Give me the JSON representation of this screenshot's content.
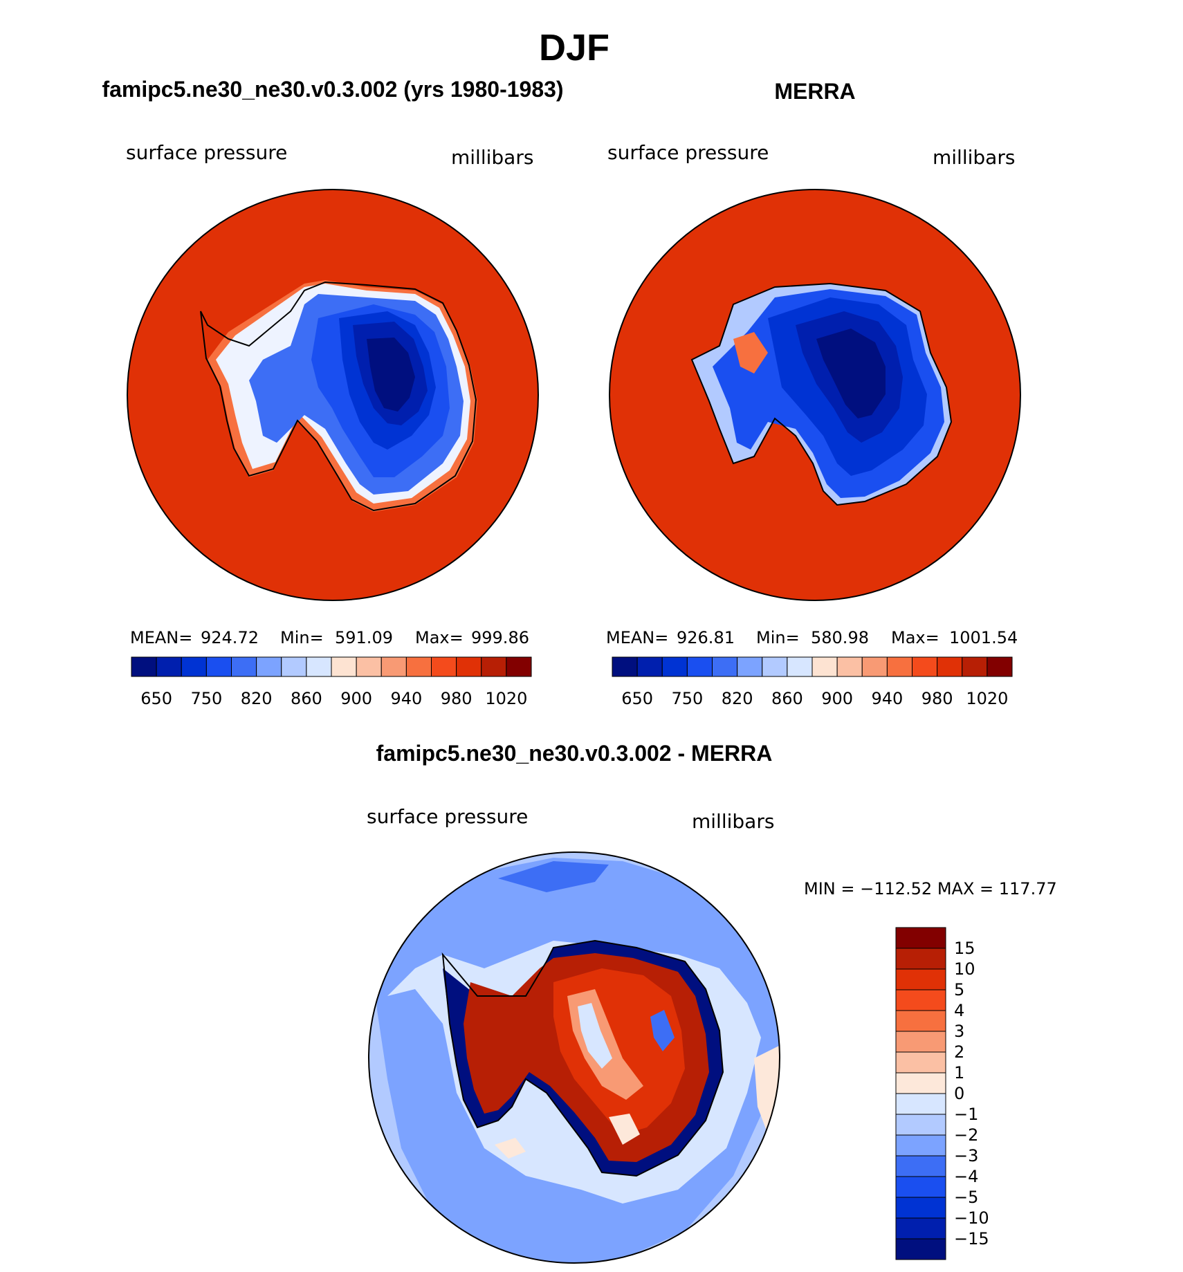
{
  "figure": {
    "title": "DJF",
    "panels": [
      {
        "id": "model",
        "title": "famipc5.ne30_ne30.v0.3.002 (yrs 1980-1983)",
        "left_label": "surface pressure",
        "right_label": "millibars",
        "stats": {
          "mean_label": "MEAN=",
          "mean": "924.72",
          "min_label": "Min=",
          "min": "591.09",
          "max_label": "Max=",
          "max": "999.86"
        }
      },
      {
        "id": "obs",
        "title": "MERRA",
        "left_label": "surface pressure",
        "right_label": "millibars",
        "stats": {
          "mean_label": "MEAN=",
          "mean": "926.81",
          "min_label": "Min=",
          "min": "580.98",
          "max_label": "Max=",
          "max": "1001.54"
        }
      },
      {
        "id": "diff",
        "title": "famipc5.ne30_ne30.v0.3.002 - MERRA",
        "left_label": "surface pressure",
        "right_label": "millibars",
        "minmax": "MIN = −112.52  MAX = 117.77"
      }
    ]
  },
  "colorbar_abs": {
    "colors": [
      "#000f7f",
      "#001fae",
      "#0033d3",
      "#1a4ff0",
      "#3d6ef5",
      "#7ca3ff",
      "#b2caff",
      "#d7e6ff",
      "#fde3d2",
      "#fbc0a4",
      "#f89a74",
      "#f7703f",
      "#f44b1c",
      "#e03106",
      "#b71f05",
      "#820000"
    ],
    "tick_labels": [
      "650",
      "750",
      "820",
      "860",
      "900",
      "940",
      "980",
      "1020"
    ]
  },
  "colorbar_diff": {
    "colors": [
      "#820000",
      "#b71f05",
      "#e03106",
      "#f44b1c",
      "#f7703f",
      "#f89a74",
      "#fbc0a4",
      "#fde8da",
      "#d7e6ff",
      "#b2caff",
      "#7ca3ff",
      "#3d6ef5",
      "#1a4ff0",
      "#0033d3",
      "#001fae",
      "#000f7f"
    ],
    "tick_labels": [
      "15",
      "10",
      "5",
      "4",
      "3",
      "2",
      "1",
      "0",
      "−1",
      "−2",
      "−3",
      "−4",
      "−5",
      "−10",
      "−15"
    ]
  }
}
